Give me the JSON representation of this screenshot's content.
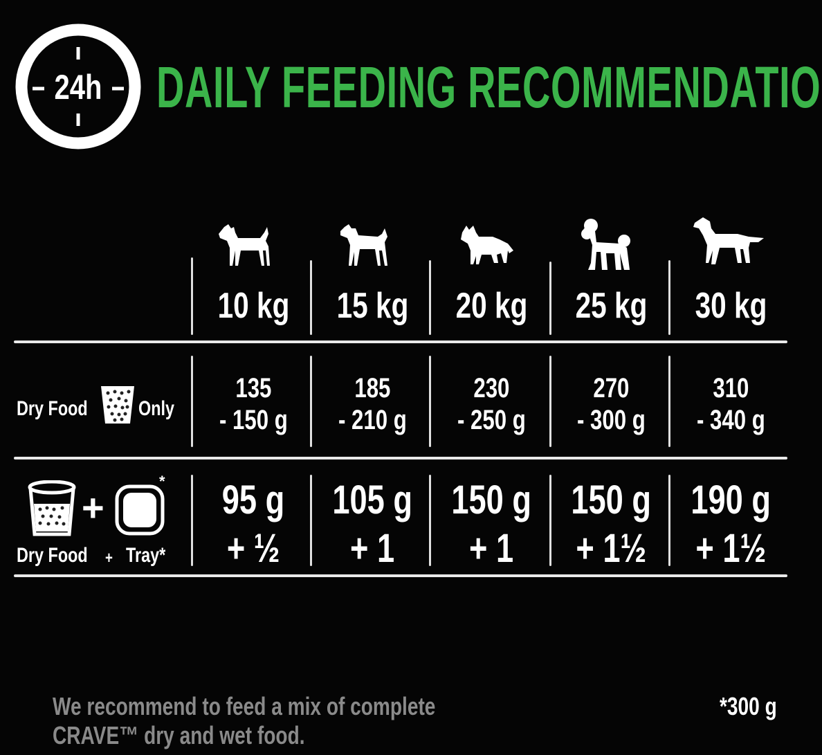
{
  "header": {
    "clock_label": "24h",
    "title": "DAILY FEEDING RECOMMENDATION",
    "title_color": "#3bb44a"
  },
  "columns": [
    {
      "weight": "10 kg",
      "icon": "terrier-dog-icon"
    },
    {
      "weight": "15 kg",
      "icon": "small-dog-icon"
    },
    {
      "weight": "20 kg",
      "icon": "collie-dog-icon"
    },
    {
      "weight": "25 kg",
      "icon": "poodle-dog-icon"
    },
    {
      "weight": "30 kg",
      "icon": "retriever-dog-icon"
    }
  ],
  "rows": {
    "dry_only": {
      "label_left": "Dry Food",
      "label_right": "Only",
      "icon": "dry-food-cup-icon",
      "values": [
        {
          "line1": "135",
          "line2": "- 150 g"
        },
        {
          "line1": "185",
          "line2": "- 210 g"
        },
        {
          "line1": "230",
          "line2": "- 250 g"
        },
        {
          "line1": "270",
          "line2": "- 300 g"
        },
        {
          "line1": "310",
          "line2": "- 340 g"
        }
      ]
    },
    "dry_tray": {
      "label_dry": "Dry Food",
      "label_plus": "+",
      "label_tray": "Tray*",
      "icon_plus": "+",
      "tray_star": "*",
      "values": [
        {
          "line1": "95 g",
          "line2": "+ ½"
        },
        {
          "line1": "105 g",
          "line2": "+ 1"
        },
        {
          "line1": "150 g",
          "line2": "+ 1"
        },
        {
          "line1": "150 g",
          "line2": "+ 1½"
        },
        {
          "line1": "190 g",
          "line2": "+ 1½"
        }
      ]
    }
  },
  "footer": {
    "note_line1": "We recommend to feed a mix of complete",
    "note_line2": "CRAVE™ dry and wet food.",
    "footnote": "*300 g"
  }
}
